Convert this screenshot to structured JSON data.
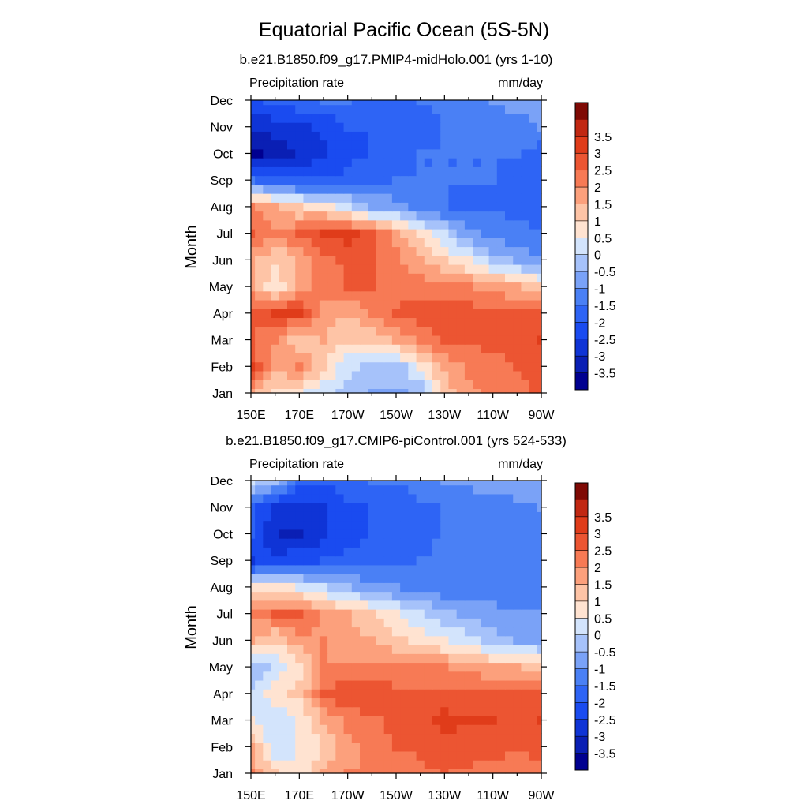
{
  "chart_data": {
    "title": "Equatorial Pacific Ocean (5S-5N)",
    "type": "heatmap",
    "x_tick_labels": [
      "150E",
      "170E",
      "170W",
      "150W",
      "130W",
      "110W",
      "90W"
    ],
    "y_tick_labels": [
      "Jan",
      "Feb",
      "Mar",
      "Apr",
      "May",
      "Jun",
      "Jul",
      "Aug",
      "Sep",
      "Oct",
      "Nov",
      "Dec"
    ],
    "ylabel": "Month",
    "x_range": [
      "150E",
      "90W"
    ],
    "y_range": [
      "Jan",
      "Dec"
    ],
    "colorbar": {
      "levels": [
        -3.5,
        -3,
        -2.5,
        -2,
        -1.5,
        -1,
        -0.5,
        0,
        0.5,
        1,
        1.5,
        2,
        2.5,
        3,
        3.5
      ],
      "labels": [
        "-3.5",
        "-3",
        "-2.5",
        "-2",
        "-1.5",
        "-1",
        "-0.5",
        "0",
        "0.5",
        "1",
        "1.5",
        "2",
        "2.5",
        "3",
        "3.5"
      ],
      "colors": [
        "#000090",
        "#0a1fb4",
        "#0f34d6",
        "#1a4bf0",
        "#2e64f5",
        "#4a80f5",
        "#7aa2f7",
        "#a6c2fa",
        "#d3e4fc",
        "#ffe3d1",
        "#fec4a6",
        "#fca07c",
        "#f77a55",
        "#ec5532",
        "#e03c1a",
        "#c12812",
        "#7f0a05"
      ]
    },
    "panels": [
      {
        "subtitle": "b.e21.B1850.f09_g17.PMIP4-midHolo.001 (yrs 1-10)",
        "left_label": "Precipitation rate",
        "right_label": "mm/day",
        "grid_months": [
          "Jan",
          "Feb",
          "Mar",
          "Apr",
          "May",
          "Jun",
          "Jul",
          "Aug",
          "Sep",
          "Oct",
          "Nov",
          "Dec"
        ],
        "grid_lons": [
          "150E",
          "160E",
          "170E",
          "180",
          "170W",
          "160W",
          "150W",
          "140W",
          "130W",
          "120W",
          "110W",
          "100W",
          "90W"
        ],
        "values": [
          [
            1.5,
            0.8,
            0.5,
            0.2,
            -0.2,
            -0.6,
            -0.6,
            -0.3,
            1.2,
            1.8,
            2.2,
            2.4,
            2.6
          ],
          [
            3.0,
            1.5,
            2.2,
            1.0,
            0.2,
            -0.2,
            -0.3,
            0.6,
            1.6,
            2.2,
            2.4,
            2.5,
            2.6
          ],
          [
            2.5,
            2.0,
            1.0,
            1.5,
            1.0,
            1.0,
            1.5,
            2.2,
            2.5,
            2.6,
            2.6,
            2.6,
            3.0
          ],
          [
            2.5,
            3.2,
            3.0,
            1.8,
            1.5,
            2.0,
            2.5,
            2.7,
            2.8,
            2.8,
            2.7,
            2.6,
            2.6
          ],
          [
            1.8,
            0.5,
            1.8,
            2.2,
            2.5,
            2.5,
            2.4,
            2.3,
            2.2,
            2.0,
            1.8,
            1.5,
            1.2
          ],
          [
            1.5,
            1.0,
            1.5,
            2.3,
            2.6,
            2.5,
            2.2,
            1.5,
            1.0,
            0.5,
            -0.2,
            -0.6,
            -1.0
          ],
          [
            2.6,
            2.0,
            2.5,
            3.1,
            3.2,
            2.6,
            1.8,
            0.8,
            0.0,
            -0.8,
            -1.2,
            -1.4,
            -1.5
          ],
          [
            2.0,
            1.6,
            1.0,
            0.8,
            0.2,
            -0.6,
            -0.8,
            -1.2,
            -1.5,
            -1.6,
            -1.6,
            -1.6,
            -1.6
          ],
          [
            -1.5,
            -1.8,
            -2.0,
            -2.0,
            -1.8,
            -1.6,
            -1.5,
            -1.5,
            -1.5,
            -1.5,
            -1.5,
            -1.6,
            -1.8
          ],
          [
            -3.6,
            -3.4,
            -3.0,
            -2.6,
            -2.2,
            -2.0,
            -1.9,
            -1.5,
            -1.5,
            -1.5,
            -1.5,
            -1.5,
            -1.8
          ],
          [
            -3.0,
            -2.8,
            -2.6,
            -2.4,
            -2.0,
            -2.0,
            -2.0,
            -1.8,
            -1.5,
            -1.4,
            -1.3,
            -1.2,
            -1.0
          ],
          [
            -2.2,
            -1.8,
            -1.6,
            -1.5,
            -1.5,
            -1.6,
            -1.6,
            -1.5,
            -1.4,
            -1.3,
            -1.0,
            -0.8,
            -0.9
          ]
        ]
      },
      {
        "subtitle": "b.e21.B1850.f09_g17.CMIP6-piControl.001 (yrs 524-533)",
        "left_label": "Precipitation rate",
        "right_label": "mm/day",
        "grid_months": [
          "Jan",
          "Feb",
          "Mar",
          "Apr",
          "May",
          "Jun",
          "Jul",
          "Aug",
          "Sep",
          "Oct",
          "Nov",
          "Dec"
        ],
        "grid_lons": [
          "150E",
          "160E",
          "170E",
          "180",
          "170W",
          "160W",
          "150W",
          "140W",
          "130W",
          "120W",
          "110W",
          "100W",
          "90W"
        ],
        "values": [
          [
            2.0,
            1.0,
            0.5,
            1.5,
            2.0,
            2.0,
            2.2,
            2.4,
            2.5,
            2.4,
            2.2,
            2.0,
            2.2
          ],
          [
            1.5,
            0.2,
            0.5,
            1.0,
            1.8,
            2.3,
            2.5,
            2.6,
            2.8,
            2.8,
            2.8,
            2.6,
            2.8
          ],
          [
            0.5,
            0.0,
            0.5,
            1.5,
            2.2,
            2.4,
            2.6,
            2.8,
            3.2,
            3.0,
            3.0,
            2.8,
            3.0
          ],
          [
            0.0,
            0.8,
            1.2,
            2.5,
            2.9,
            2.9,
            2.7,
            2.7,
            2.6,
            2.6,
            2.6,
            2.6,
            2.7
          ],
          [
            -0.5,
            0.2,
            0.8,
            2.0,
            2.0,
            2.0,
            2.0,
            2.0,
            2.0,
            1.8,
            1.5,
            1.5,
            1.2
          ],
          [
            1.5,
            1.0,
            1.8,
            2.0,
            1.8,
            1.5,
            1.2,
            0.8,
            0.5,
            0.2,
            -0.2,
            -0.6,
            -0.6
          ],
          [
            2.2,
            2.5,
            2.6,
            1.8,
            1.5,
            1.0,
            0.5,
            0.0,
            -0.4,
            -0.6,
            -0.8,
            -1.0,
            -1.0
          ],
          [
            0.6,
            0.8,
            0.4,
            0.0,
            -0.4,
            -0.8,
            -1.0,
            -1.2,
            -1.3,
            -1.4,
            -1.4,
            -1.5,
            -1.5
          ],
          [
            -2.6,
            -2.3,
            -2.1,
            -2.0,
            -1.8,
            -1.7,
            -1.6,
            -1.5,
            -1.4,
            -1.3,
            -1.3,
            -1.3,
            -1.5
          ],
          [
            -2.0,
            -3.0,
            -3.2,
            -2.6,
            -2.2,
            -2.0,
            -1.8,
            -1.6,
            -1.5,
            -1.4,
            -1.4,
            -1.4,
            -1.5
          ],
          [
            -1.8,
            -2.6,
            -2.6,
            -2.6,
            -2.2,
            -2.0,
            -1.8,
            -1.6,
            -1.5,
            -1.4,
            -1.3,
            -1.2,
            -1.0
          ],
          [
            0.2,
            -0.5,
            -1.8,
            -2.0,
            -1.6,
            -1.5,
            -1.5,
            -1.3,
            -1.0,
            -0.8,
            -0.6,
            -0.6,
            -0.6
          ]
        ]
      }
    ]
  }
}
